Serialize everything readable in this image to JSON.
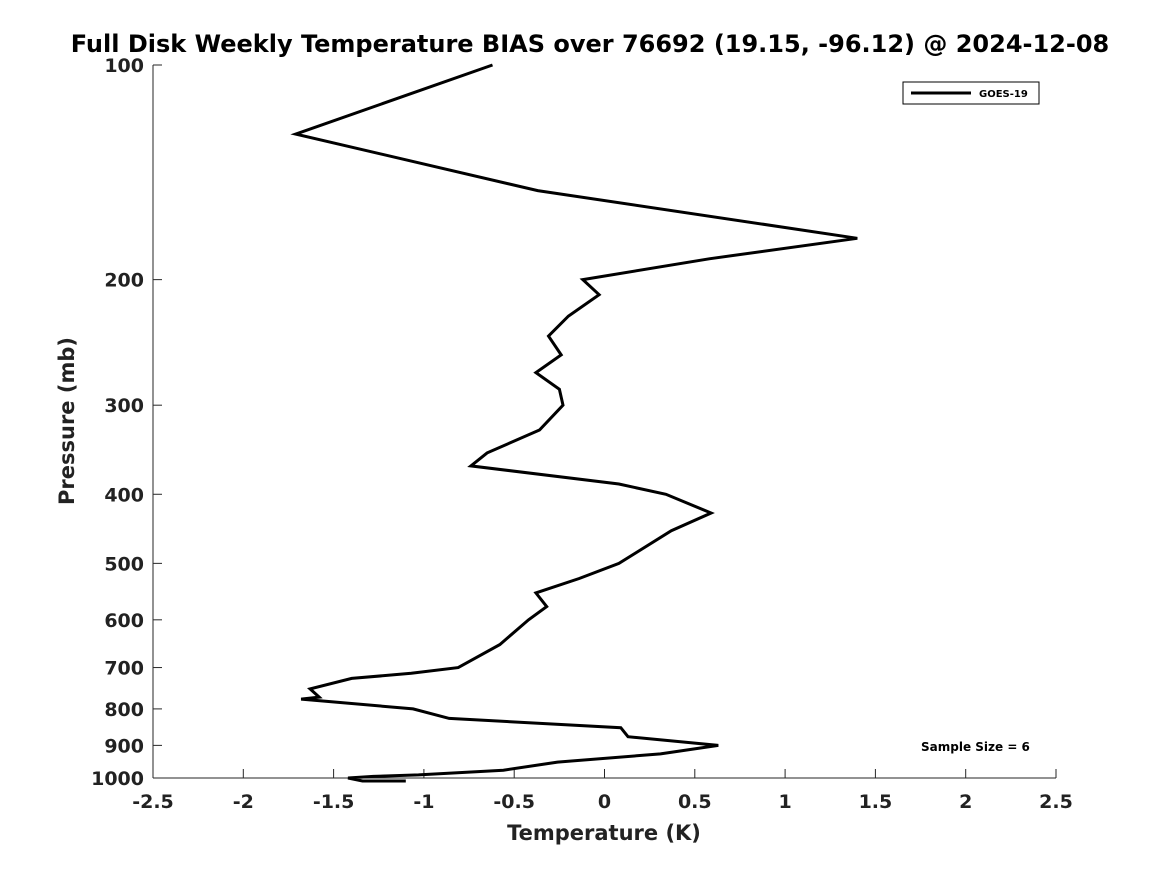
{
  "chart_data": {
    "type": "line",
    "title": "Full Disk Weekly Temperature BIAS over 76692 (19.15, -96.12) @ 2024-12-08",
    "xlabel": "Temperature (K)",
    "ylabel": "Pressure (mb)",
    "xlim": [
      -2.5,
      2.5
    ],
    "ylim": [
      100,
      1000
    ],
    "y_scale": "log",
    "y_inverted": true,
    "x_ticks": [
      -2.5,
      -2,
      -1.5,
      -1,
      -0.5,
      0,
      0.5,
      1,
      1.5,
      2,
      2.5
    ],
    "x_tick_labels": [
      "-2.5",
      "-2",
      "-1.5",
      "-1",
      "-0.5",
      "0",
      "0.5",
      "1",
      "1.5",
      "2",
      "2.5"
    ],
    "y_ticks": [
      100,
      200,
      300,
      400,
      500,
      600,
      700,
      800,
      900,
      1000
    ],
    "y_tick_labels": [
      "100",
      "200",
      "300",
      "400",
      "500",
      "600",
      "700",
      "800",
      "900",
      "1000"
    ],
    "grid": false,
    "legend_position": "top-right",
    "series": [
      {
        "name": "GOES-19",
        "color": "#000000",
        "x": [
          -0.62,
          -1.71,
          -0.37,
          1.4,
          0.58,
          -0.12,
          -0.03,
          -0.2,
          -0.31,
          -0.24,
          -0.38,
          -0.25,
          -0.23,
          -0.36,
          -0.65,
          -0.74,
          0.08,
          0.34,
          0.59,
          0.37,
          0.08,
          -0.14,
          -0.38,
          -0.32,
          -0.42,
          -0.58,
          -0.81,
          -1.07,
          -1.4,
          -1.63,
          -1.58,
          -1.68,
          -1.06,
          -0.86,
          0.09,
          0.13,
          0.63,
          0.31,
          -0.26,
          -0.56,
          -1.03,
          -1.28,
          -1.42,
          -1.34,
          -1.1,
          -1.14
        ],
        "y": [
          100,
          125,
          150,
          175,
          187,
          200,
          210,
          225,
          240,
          255,
          270,
          285,
          300,
          325,
          350,
          365,
          387,
          400,
          425,
          450,
          500,
          525,
          550,
          575,
          600,
          650,
          700,
          713,
          725,
          750,
          770,
          775,
          800,
          825,
          850,
          875,
          900,
          925,
          950,
          975,
          990,
          995,
          1000,
          1010,
          1020,
          1030
        ]
      }
    ],
    "annotation": "Sample Size = 6"
  }
}
